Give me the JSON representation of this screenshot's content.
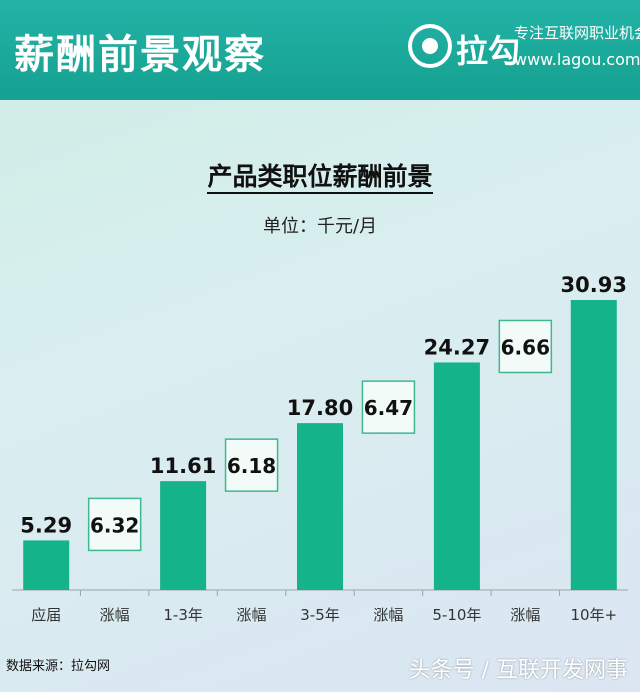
{
  "banner": {
    "title": "薪酬前景观察",
    "logo_name": "拉勾",
    "slogan": "专注互联网职业机会",
    "site": "www.lagou.com"
  },
  "chart_data": {
    "type": "bar",
    "title": "产品类职位薪酬前景",
    "subtitle": "单位：千元/月",
    "categories": [
      "应届",
      "涨幅",
      "1-3年",
      "涨幅",
      "3-5年",
      "涨幅",
      "5-10年",
      "涨幅",
      "10年+"
    ],
    "series": [
      {
        "values": [
          5.29,
          6.32,
          11.61,
          6.18,
          17.8,
          6.47,
          24.27,
          6.66,
          30.93
        ]
      }
    ],
    "value_labels": [
      "5.29",
      "6.32",
      "11.61",
      "6.18",
      "17.80",
      "6.47",
      "24.27",
      "6.66",
      "30.93"
    ],
    "mark_kind": [
      "bar",
      "increase",
      "bar",
      "increase",
      "bar",
      "increase",
      "bar",
      "increase",
      "bar"
    ],
    "ylim": [
      0,
      32
    ],
    "grid": false,
    "colors": {
      "bar": "#15b389",
      "increase_border": "#3db892",
      "increase_fill": "#f2fbf7"
    }
  },
  "footer": {
    "source": "数据来源：拉勾网",
    "watermark": "头条号 / 互联开发网事"
  }
}
